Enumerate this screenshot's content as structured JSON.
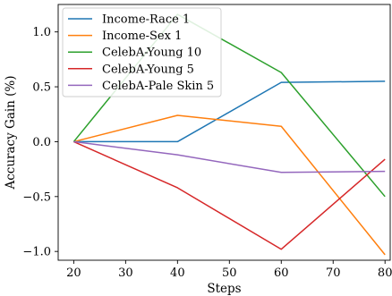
{
  "chart_data": {
    "type": "line",
    "title": "",
    "xlabel": "Steps",
    "ylabel": "Accuracy Gain (%)",
    "x": [
      20,
      40,
      60,
      80
    ],
    "xlim": [
      17,
      81
    ],
    "ylim": [
      -1.08,
      1.25
    ],
    "xticks": [
      20,
      30,
      40,
      50,
      60,
      70,
      80
    ],
    "yticks": [
      -1.0,
      -0.5,
      0.0,
      0.5,
      1.0
    ],
    "ytick_labels": [
      "−1.0",
      "−0.5",
      "0.0",
      "0.5",
      "1.0"
    ],
    "grid": false,
    "legend_position": "top-left",
    "series": [
      {
        "name": "Income-Race 1",
        "color": "#1f77b4",
        "values": [
          0.0,
          0.0,
          0.54,
          0.55
        ]
      },
      {
        "name": "Income-Sex 1",
        "color": "#ff7f0e",
        "values": [
          0.0,
          0.24,
          0.14,
          -1.03
        ]
      },
      {
        "name": "CelebA-Young 10",
        "color": "#2ca02c",
        "values": [
          0.0,
          1.16,
          0.63,
          -0.5
        ]
      },
      {
        "name": "CelebA-Young 5",
        "color": "#d62728",
        "values": [
          0.0,
          -0.42,
          -0.98,
          -0.16
        ]
      },
      {
        "name": "CelebA-Pale Skin 5",
        "color": "#9467bd",
        "values": [
          0.0,
          -0.12,
          -0.28,
          -0.27
        ]
      }
    ]
  }
}
